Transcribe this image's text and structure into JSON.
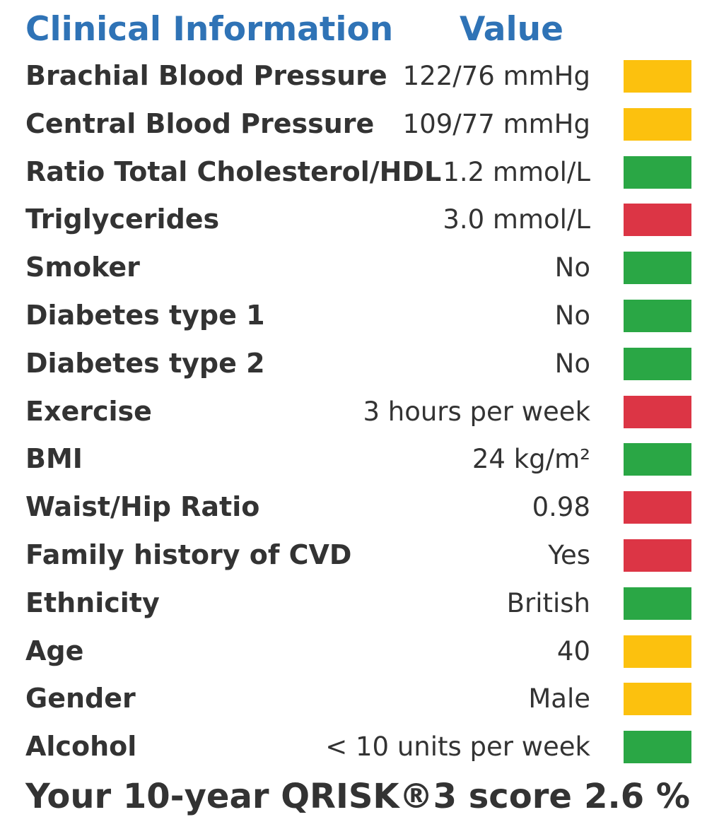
{
  "header": {
    "label": "Clinical Information",
    "value": "Value"
  },
  "status_colors": {
    "amber": "#fcc10e",
    "green": "#2aa745",
    "red": "#dc3545"
  },
  "rows": [
    {
      "label": "Brachial Blood Pressure",
      "value": "122/76 mmHg",
      "status": "amber"
    },
    {
      "label": "Central Blood Pressure",
      "value": "109/77 mmHg",
      "status": "amber"
    },
    {
      "label": "Ratio Total Cholesterol/HDL",
      "value": "1.2 mmol/L",
      "status": "green"
    },
    {
      "label": "Triglycerides",
      "value": "3.0 mmol/L",
      "status": "red"
    },
    {
      "label": "Smoker",
      "value": "No",
      "status": "green"
    },
    {
      "label": "Diabetes type 1",
      "value": "No",
      "status": "green"
    },
    {
      "label": "Diabetes type 2",
      "value": "No",
      "status": "green"
    },
    {
      "label": "Exercise",
      "value": "3 hours per week",
      "status": "red"
    },
    {
      "label": "BMI",
      "value": "24 kg/m²",
      "status": "green"
    },
    {
      "label": "Waist/Hip Ratio",
      "value": "0.98",
      "status": "red"
    },
    {
      "label": "Family history of CVD",
      "value": "Yes",
      "status": "red"
    },
    {
      "label": "Ethnicity",
      "value": "British",
      "status": "green"
    },
    {
      "label": "Age",
      "value": "40",
      "status": "amber"
    },
    {
      "label": "Gender",
      "value": "Male",
      "status": "amber"
    },
    {
      "label": "Alcohol",
      "value": "< 10 units per week",
      "status": "green"
    }
  ],
  "footer": {
    "label": "Your 10-year QRISK®3 score",
    "value": "2.6 %"
  }
}
